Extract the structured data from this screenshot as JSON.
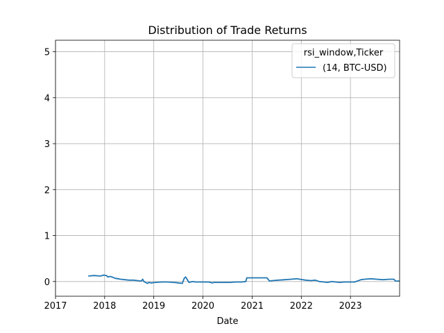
{
  "chart_data": {
    "type": "line",
    "title": "Distribution of Trade Returns",
    "xlabel": "Date",
    "ylabel": "",
    "x_ticks": [
      "2017",
      "2018",
      "2019",
      "2020",
      "2021",
      "2022",
      "2023"
    ],
    "y_ticks": [
      "0",
      "1",
      "2",
      "3",
      "4",
      "5"
    ],
    "xlim": [
      "2017-01-01",
      "2024-01-01"
    ],
    "ylim": [
      -0.32,
      5.25
    ],
    "grid": true,
    "legend": {
      "title": "rsi_window,Ticker",
      "placement": "top-right",
      "entries": [
        "(14, BTC-USD)"
      ]
    },
    "series": [
      {
        "name": "(14, BTC-USD)",
        "color": "#1f77b4",
        "x": [
          "2017-09-01",
          "2017-10-15",
          "2017-12-01",
          "2017-12-25",
          "2018-01-15",
          "2018-01-25",
          "2018-02-10",
          "2018-02-25",
          "2018-03-20",
          "2018-04-10",
          "2018-05-01",
          "2018-06-01",
          "2018-07-01",
          "2018-08-01",
          "2018-09-01",
          "2018-10-01",
          "2018-10-10",
          "2018-10-20",
          "2018-11-15",
          "2018-11-25",
          "2018-12-10",
          "2019-01-15",
          "2019-03-01",
          "2019-04-15",
          "2019-06-01",
          "2019-07-01",
          "2019-08-01",
          "2019-08-15",
          "2019-08-25",
          "2019-09-05",
          "2019-09-20",
          "2019-10-15",
          "2019-11-10",
          "2019-12-20",
          "2020-01-15",
          "2020-02-15",
          "2020-03-10",
          "2020-03-25",
          "2020-05-01",
          "2020-06-15",
          "2020-07-20",
          "2020-09-01",
          "2020-10-15",
          "2020-11-15",
          "2020-11-22",
          "2020-12-10",
          "2021-01-15",
          "2021-03-01",
          "2021-04-10",
          "2021-04-20",
          "2021-05-10",
          "2021-06-01",
          "2021-07-15",
          "2021-09-01",
          "2021-10-15",
          "2021-12-01",
          "2021-12-20",
          "2022-02-01",
          "2022-03-15",
          "2022-04-15",
          "2022-05-15",
          "2022-06-20",
          "2022-07-15",
          "2022-08-15",
          "2022-09-15",
          "2022-10-15",
          "2022-11-10",
          "2023-01-01",
          "2023-02-01",
          "2023-03-20",
          "2023-04-15",
          "2023-06-01",
          "2023-07-15",
          "2023-09-01",
          "2023-10-15",
          "2023-11-20",
          "2023-12-01",
          "2023-12-31"
        ],
        "y": [
          0.12,
          0.13,
          0.12,
          0.14,
          0.13,
          0.1,
          0.11,
          0.1,
          0.07,
          0.06,
          0.05,
          0.04,
          0.03,
          0.03,
          0.02,
          0.01,
          0.05,
          0.0,
          -0.04,
          -0.02,
          -0.03,
          -0.02,
          -0.01,
          -0.01,
          -0.02,
          -0.03,
          -0.04,
          0.07,
          0.1,
          0.05,
          -0.02,
          0.0,
          -0.01,
          -0.01,
          -0.01,
          -0.01,
          -0.03,
          -0.02,
          -0.02,
          -0.02,
          -0.02,
          -0.01,
          -0.01,
          0.0,
          0.08,
          0.08,
          0.08,
          0.08,
          0.08,
          0.08,
          0.01,
          0.02,
          0.03,
          0.04,
          0.05,
          0.06,
          0.05,
          0.03,
          0.02,
          0.03,
          0.0,
          -0.01,
          -0.02,
          0.0,
          -0.01,
          -0.02,
          -0.01,
          -0.01,
          -0.01,
          0.04,
          0.05,
          0.06,
          0.05,
          0.04,
          0.05,
          0.05,
          0.01,
          0.01
        ]
      }
    ]
  }
}
